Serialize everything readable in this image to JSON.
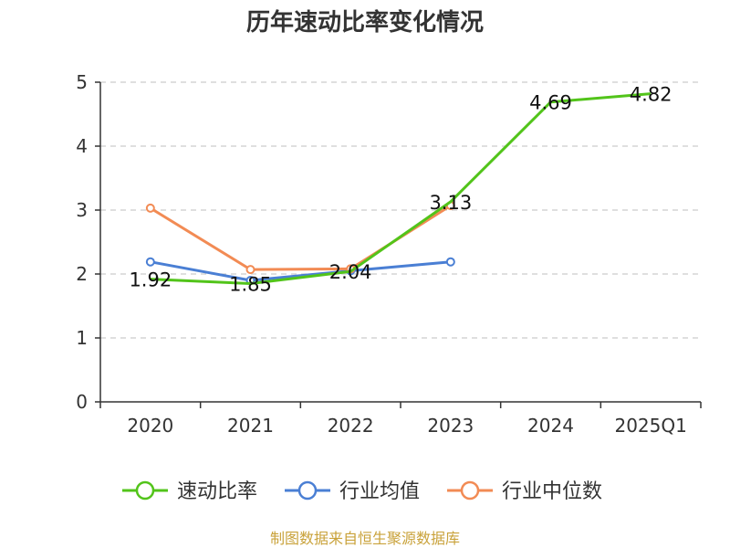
{
  "chart_data": {
    "type": "line",
    "title": "历年速动比率变化情况",
    "xlabel": "",
    "ylabel": "",
    "categories": [
      "2020",
      "2021",
      "2022",
      "2023",
      "2024",
      "2025Q1"
    ],
    "ylim": [
      0,
      5
    ],
    "yticks": [
      "0",
      "1",
      "2",
      "3",
      "4",
      "5"
    ],
    "grid": true,
    "legend_position": "bottom",
    "series": [
      {
        "name": "速动比率",
        "color": "#52c41a",
        "values": [
          1.92,
          1.85,
          2.04,
          3.13,
          4.69,
          4.82
        ],
        "labels": [
          "1.92",
          "1.85",
          "2.04",
          "3.13",
          "4.69",
          "4.82"
        ]
      },
      {
        "name": "行业均值",
        "color": "#4a7fd4",
        "values": [
          2.19,
          1.9,
          2.05,
          2.19,
          null,
          null
        ]
      },
      {
        "name": "行业中位数",
        "color": "#f28b54",
        "values": [
          3.03,
          2.07,
          2.08,
          3.07,
          null,
          null
        ]
      }
    ],
    "source": "制图数据来自恒生聚源数据库"
  }
}
